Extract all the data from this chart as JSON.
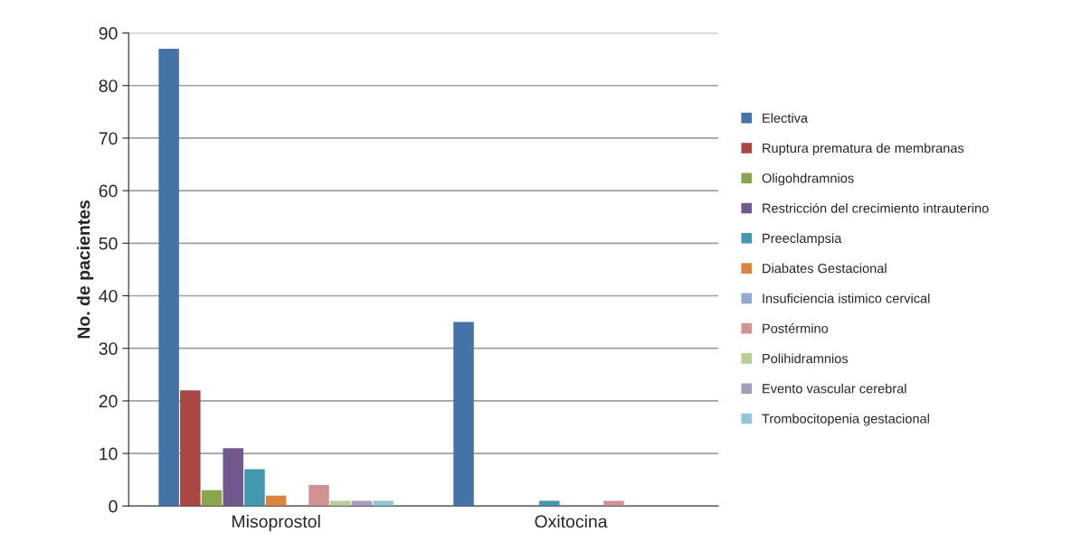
{
  "chart_data": {
    "type": "bar",
    "ylabel": "No. de pacientes",
    "categories": [
      "Misoprostol",
      "Oxitocina"
    ],
    "series": [
      {
        "name": "Electiva",
        "color": "#4572a7",
        "values": [
          87,
          35
        ]
      },
      {
        "name": "Ruptura prematura de membranas",
        "color": "#aa4643",
        "values": [
          22,
          0
        ]
      },
      {
        "name": "Oligohdramnios",
        "color": "#89a54e",
        "values": [
          3,
          0
        ]
      },
      {
        "name": "Restricción del crecimiento intrauterino",
        "color": "#71588f",
        "values": [
          11,
          0
        ]
      },
      {
        "name": "Preeclampsia",
        "color": "#4198af",
        "values": [
          7,
          1
        ]
      },
      {
        "name": "Diabates Gestacional",
        "color": "#db843d",
        "values": [
          2,
          0
        ]
      },
      {
        "name": "Insuficiencia istimico cervical",
        "color": "#93a9cf",
        "values": [
          0,
          0
        ]
      },
      {
        "name": "Postérmino",
        "color": "#d19392",
        "values": [
          4,
          1
        ]
      },
      {
        "name": "Polihidramnios",
        "color": "#b9cd96",
        "values": [
          1,
          0
        ]
      },
      {
        "name": "Evento vascular cerebral",
        "color": "#a99bbd",
        "values": [
          1,
          0
        ]
      },
      {
        "name": "Trombocitopenia gestacional",
        "color": "#92c5d9",
        "values": [
          1,
          0
        ]
      }
    ],
    "ylim": [
      0,
      90
    ],
    "yticks": [
      0,
      10,
      20,
      30,
      40,
      50,
      60,
      70,
      80,
      90
    ],
    "grid": "y",
    "legend": "right"
  }
}
